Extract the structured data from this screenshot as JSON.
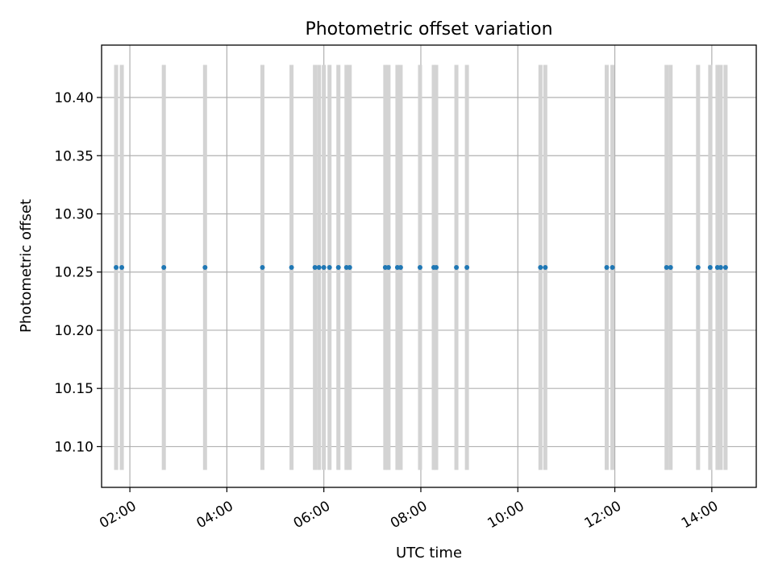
{
  "chart_data": {
    "type": "scatter",
    "title": "Photometric offset variation",
    "xlabel": "UTC time",
    "ylabel": "Photometric offset",
    "x_ticks": [
      "02:00",
      "04:00",
      "06:00",
      "08:00",
      "10:00",
      "12:00",
      "14:00"
    ],
    "y_ticks": [
      "10.10",
      "10.15",
      "10.20",
      "10.25",
      "10.30",
      "10.35",
      "10.40"
    ],
    "xlim": [
      "01:25",
      "14:55"
    ],
    "ylim": [
      10.065,
      10.445
    ],
    "grid": true,
    "band_range": [
      10.08,
      10.428
    ],
    "band_color": "#d3d3d3",
    "point_color": "#1f77b4",
    "points": [
      {
        "time": "01:43",
        "value": 10.254
      },
      {
        "time": "01:50",
        "value": 10.254
      },
      {
        "time": "02:42",
        "value": 10.254
      },
      {
        "time": "03:33",
        "value": 10.254
      },
      {
        "time": "04:44",
        "value": 10.254
      },
      {
        "time": "05:20",
        "value": 10.254
      },
      {
        "time": "05:49",
        "value": 10.254
      },
      {
        "time": "05:54",
        "value": 10.254
      },
      {
        "time": "06:00",
        "value": 10.254
      },
      {
        "time": "06:07",
        "value": 10.254
      },
      {
        "time": "06:18",
        "value": 10.254
      },
      {
        "time": "06:28",
        "value": 10.254
      },
      {
        "time": "06:32",
        "value": 10.254
      },
      {
        "time": "07:16",
        "value": 10.254
      },
      {
        "time": "07:20",
        "value": 10.254
      },
      {
        "time": "07:31",
        "value": 10.254
      },
      {
        "time": "07:35",
        "value": 10.254
      },
      {
        "time": "07:59",
        "value": 10.254
      },
      {
        "time": "08:16",
        "value": 10.254
      },
      {
        "time": "08:19",
        "value": 10.254
      },
      {
        "time": "08:44",
        "value": 10.254
      },
      {
        "time": "08:57",
        "value": 10.254
      },
      {
        "time": "10:28",
        "value": 10.254
      },
      {
        "time": "10:34",
        "value": 10.254
      },
      {
        "time": "11:50",
        "value": 10.254
      },
      {
        "time": "11:57",
        "value": 10.254
      },
      {
        "time": "13:04",
        "value": 10.254
      },
      {
        "time": "13:09",
        "value": 10.254
      },
      {
        "time": "13:43",
        "value": 10.254
      },
      {
        "time": "13:58",
        "value": 10.254
      },
      {
        "time": "14:07",
        "value": 10.254
      },
      {
        "time": "14:11",
        "value": 10.254
      },
      {
        "time": "14:17",
        "value": 10.254
      }
    ]
  }
}
